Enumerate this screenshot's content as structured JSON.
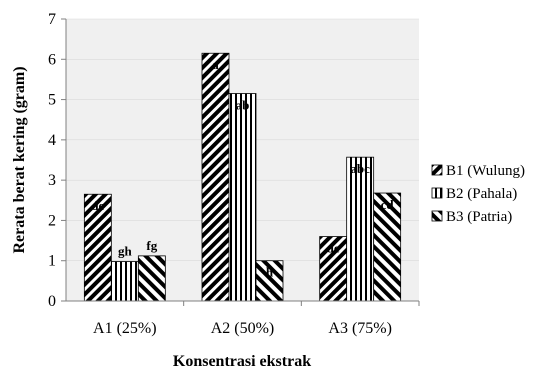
{
  "chart_data": {
    "type": "bar",
    "categories": [
      "A1 (25%)",
      "A2 (50%)",
      "A3 (75%)"
    ],
    "series": [
      {
        "name": "B1 (Wulung)",
        "values": [
          2.65,
          6.15,
          1.6
        ],
        "labels": [
          "de",
          "a",
          "de"
        ]
      },
      {
        "name": "B2 (Pahala)",
        "values": [
          0.98,
          5.15,
          3.57
        ],
        "labels": [
          "gh",
          "ab",
          "abc"
        ]
      },
      {
        "name": "B3 (Patria)",
        "values": [
          1.12,
          1.0,
          2.68
        ],
        "labels": [
          "fg",
          "h",
          "cd"
        ]
      }
    ],
    "title": "",
    "xlabel": "Konsentrasi ekstrak",
    "ylabel": "Rerata berat kering (gram)",
    "ylim": [
      0,
      7
    ],
    "yticks": [
      "0",
      "1",
      "2",
      "3",
      "4",
      "5",
      "6",
      "7"
    ],
    "grid": false,
    "legend": "right",
    "colors": {
      "plot_background": "#f0f0f0",
      "bar_fill": "#000000",
      "bar_background": "#ffffff"
    },
    "patterns": [
      "diagonal-hatch",
      "vertical-stripes",
      "diagonal-hatch-reverse"
    ]
  }
}
